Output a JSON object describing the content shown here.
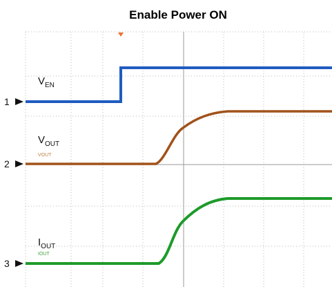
{
  "title": "Enable Power ON",
  "traces": [
    {
      "label": {
        "main": "V",
        "sub": "EN"
      },
      "channel": "1"
    },
    {
      "label": {
        "main": "V",
        "sub": "OUT"
      },
      "tag": "VOUT",
      "channel": "2"
    },
    {
      "label": {
        "main": "I",
        "sub": "OUT"
      },
      "tag": "IOUT",
      "channel": "3"
    }
  ]
}
